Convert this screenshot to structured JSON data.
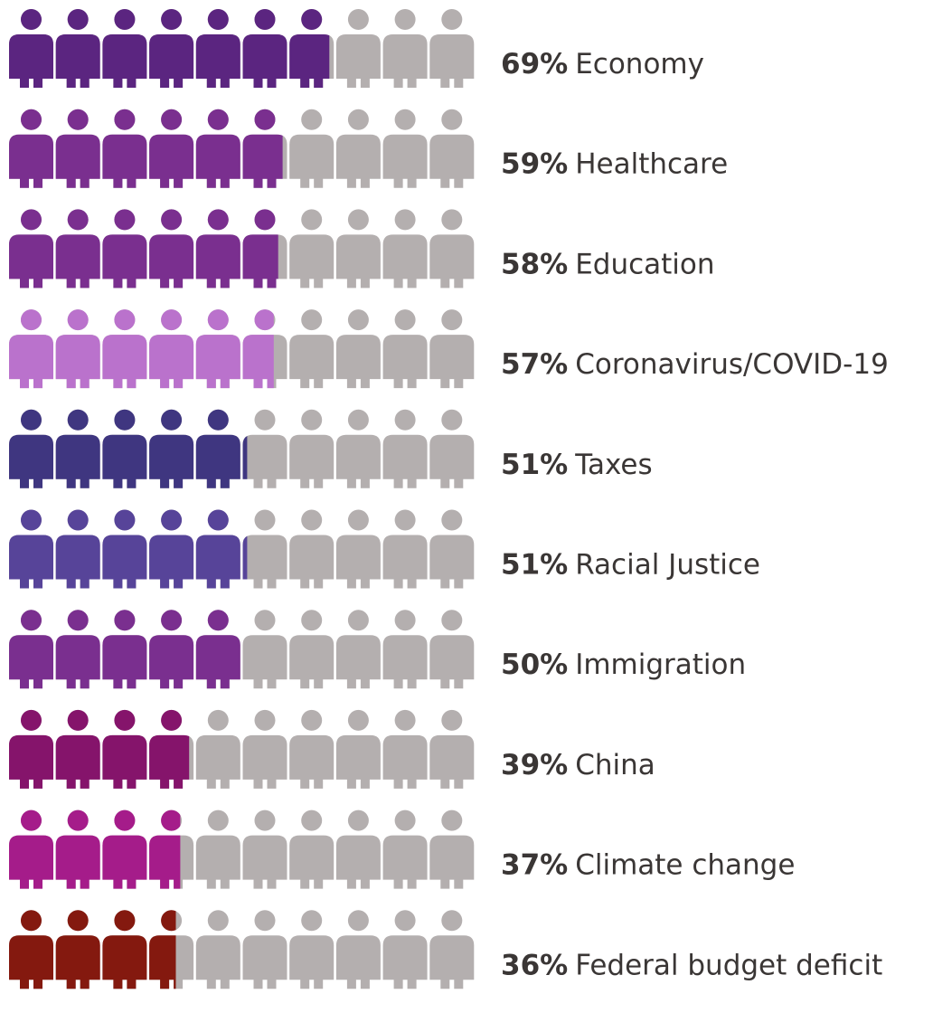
{
  "chart_data": {
    "type": "pictograph",
    "icon": "person-icon",
    "icons_per_row": 10,
    "empty_color": "#b4afaf",
    "rows": [
      {
        "value": 69,
        "value_label": "69%",
        "label": "Economy",
        "color": "#5b2580"
      },
      {
        "value": 59,
        "value_label": "59%",
        "label": "Healthcare",
        "color": "#7a2f8f"
      },
      {
        "value": 58,
        "value_label": "58%",
        "label": "Education",
        "color": "#7a2f8f"
      },
      {
        "value": 57,
        "value_label": "57%",
        "label": "Coronavirus/COVID-19",
        "color": "#ba72cc"
      },
      {
        "value": 51,
        "value_label": "51%",
        "label": "Taxes",
        "color": "#3f3680"
      },
      {
        "value": 51,
        "value_label": "51%",
        "label": "Racial Justice",
        "color": "#574499"
      },
      {
        "value": 50,
        "value_label": "50%",
        "label": "Immigration",
        "color": "#7a2f8f"
      },
      {
        "value": 39,
        "value_label": "39%",
        "label": "China",
        "color": "#85146b"
      },
      {
        "value": 37,
        "value_label": "37%",
        "label": "Climate change",
        "color": "#a51c8a"
      },
      {
        "value": 36,
        "value_label": "36%",
        "label": "Federal budget deficit",
        "color": "#84190f"
      }
    ]
  }
}
